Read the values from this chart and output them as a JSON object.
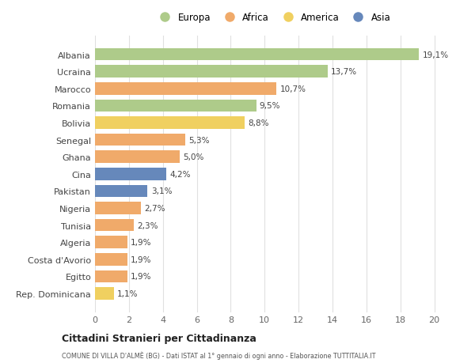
{
  "countries": [
    "Albania",
    "Ucraina",
    "Marocco",
    "Romania",
    "Bolivia",
    "Senegal",
    "Ghana",
    "Cina",
    "Pakistan",
    "Nigeria",
    "Tunisia",
    "Algeria",
    "Costa d'Avorio",
    "Egitto",
    "Rep. Dominicana"
  ],
  "values": [
    19.1,
    13.7,
    10.7,
    9.5,
    8.8,
    5.3,
    5.0,
    4.2,
    3.1,
    2.7,
    2.3,
    1.9,
    1.9,
    1.9,
    1.1
  ],
  "labels": [
    "19,1%",
    "13,7%",
    "10,7%",
    "9,5%",
    "8,8%",
    "5,3%",
    "5,0%",
    "4,2%",
    "3,1%",
    "2,7%",
    "2,3%",
    "1,9%",
    "1,9%",
    "1,9%",
    "1,1%"
  ],
  "categories": [
    "Europa",
    "Europa",
    "Africa",
    "Europa",
    "America",
    "Africa",
    "Africa",
    "Asia",
    "Asia",
    "Africa",
    "Africa",
    "Africa",
    "Africa",
    "Africa",
    "America"
  ],
  "colors": {
    "Europa": "#aecb8a",
    "Africa": "#f0aa6a",
    "America": "#f0d060",
    "Asia": "#6688bb"
  },
  "legend_order": [
    "Europa",
    "Africa",
    "America",
    "Asia"
  ],
  "title": "Cittadini Stranieri per Cittadinanza",
  "subtitle": "COMUNE DI VILLA D'ALMÈ (BG) - Dati ISTAT al 1° gennaio di ogni anno - Elaborazione TUTTITALIA.IT",
  "xlim": [
    0,
    21
  ],
  "xticks": [
    0,
    2,
    4,
    6,
    8,
    10,
    12,
    14,
    16,
    18,
    20
  ],
  "bg_color": "#ffffff",
  "bar_height": 0.72,
  "grid_color": "#e0e0e0"
}
